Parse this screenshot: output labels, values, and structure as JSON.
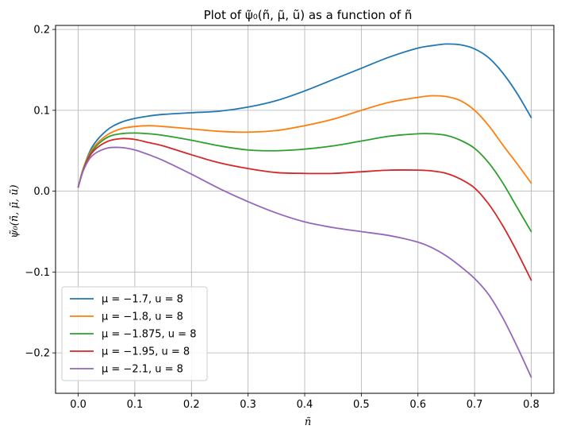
{
  "chart_data": {
    "type": "line",
    "title": "Plot of ψ̃₀(ñ, μ̃, ũ) as a function of ñ",
    "xlabel": "ñ",
    "ylabel": "ψ̃₀(ñ, μ̃, ũ)",
    "xlim": [
      -0.04,
      0.84
    ],
    "ylim": [
      -0.25,
      0.205
    ],
    "xticks": [
      0.0,
      0.1,
      0.2,
      0.3,
      0.4,
      0.5,
      0.6,
      0.7,
      0.8
    ],
    "xtick_labels": [
      "0.0",
      "0.1",
      "0.2",
      "0.3",
      "0.4",
      "0.5",
      "0.6",
      "0.7",
      "0.8"
    ],
    "yticks": [
      -0.2,
      -0.1,
      0.0,
      0.1,
      0.2
    ],
    "ytick_labels": [
      "−0.2",
      "−0.1",
      "0.0",
      "0.1",
      "0.2"
    ],
    "grid": true,
    "legend_position": "lower-left",
    "x": [
      0.0,
      0.01,
      0.025,
      0.05,
      0.075,
      0.1,
      0.125,
      0.15,
      0.2,
      0.25,
      0.3,
      0.35,
      0.4,
      0.45,
      0.5,
      0.55,
      0.6,
      0.625,
      0.65,
      0.675,
      0.7,
      0.725,
      0.75,
      0.775,
      0.8
    ],
    "series": [
      {
        "name": "μ = −1.7, u = 8",
        "color": "#1f77b4",
        "values": [
          0.005,
          0.03,
          0.055,
          0.075,
          0.085,
          0.09,
          0.093,
          0.095,
          0.097,
          0.099,
          0.104,
          0.112,
          0.124,
          0.138,
          0.152,
          0.166,
          0.177,
          0.18,
          0.182,
          0.181,
          0.176,
          0.165,
          0.146,
          0.121,
          0.091
        ]
      },
      {
        "name": "μ = −1.8, u = 8",
        "color": "#ff7f0e",
        "values": [
          0.005,
          0.03,
          0.052,
          0.069,
          0.077,
          0.08,
          0.081,
          0.08,
          0.077,
          0.074,
          0.073,
          0.075,
          0.081,
          0.089,
          0.1,
          0.11,
          0.116,
          0.118,
          0.117,
          0.112,
          0.1,
          0.081,
          0.057,
          0.034,
          0.01
        ]
      },
      {
        "name": "μ = −1.875, u = 8",
        "color": "#2ca02c",
        "values": [
          0.005,
          0.029,
          0.05,
          0.066,
          0.071,
          0.072,
          0.071,
          0.069,
          0.063,
          0.056,
          0.051,
          0.05,
          0.052,
          0.056,
          0.062,
          0.068,
          0.071,
          0.071,
          0.069,
          0.063,
          0.053,
          0.035,
          0.01,
          -0.02,
          -0.05
        ]
      },
      {
        "name": "μ = −1.95, u = 8",
        "color": "#d62728",
        "values": [
          0.005,
          0.028,
          0.048,
          0.061,
          0.065,
          0.064,
          0.06,
          0.056,
          0.045,
          0.035,
          0.028,
          0.023,
          0.022,
          0.022,
          0.024,
          0.026,
          0.026,
          0.025,
          0.022,
          0.015,
          0.004,
          -0.016,
          -0.043,
          -0.075,
          -0.11
        ]
      },
      {
        "name": "μ = −2.1, u = 8",
        "color": "#9467bd",
        "values": [
          0.005,
          0.027,
          0.044,
          0.053,
          0.054,
          0.051,
          0.045,
          0.038,
          0.021,
          0.003,
          -0.013,
          -0.027,
          -0.038,
          -0.045,
          -0.05,
          -0.055,
          -0.063,
          -0.07,
          -0.08,
          -0.093,
          -0.108,
          -0.128,
          -0.157,
          -0.192,
          -0.23
        ]
      }
    ]
  }
}
